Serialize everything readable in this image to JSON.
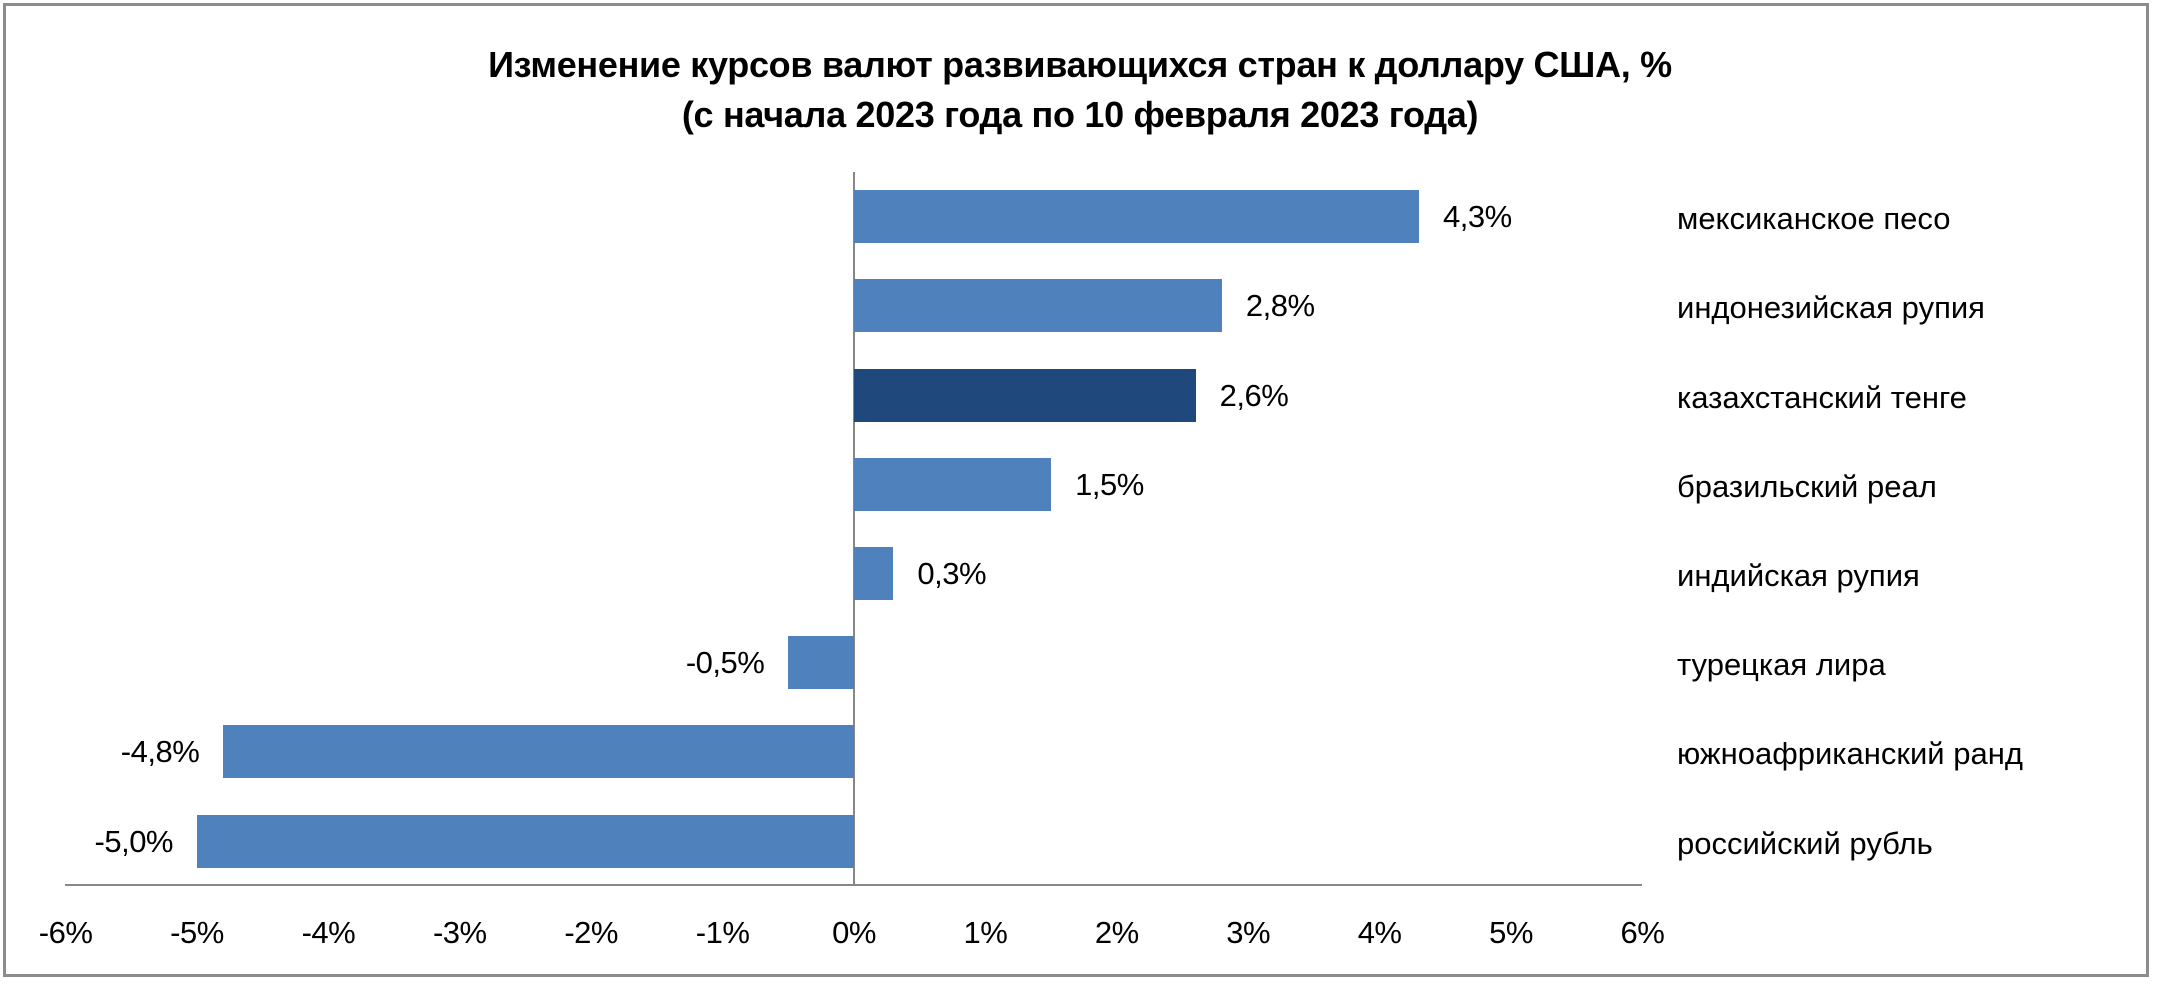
{
  "title": {
    "line1": "Изменение курсов валют развивающихся стран к доллару США, %",
    "line2": "(с начала 2023 года по 10 февраля 2023 года)"
  },
  "colors": {
    "bar": "#4f81bd",
    "highlight_bar": "#1f497d",
    "axis": "#878787",
    "frame": "#8c8c8c"
  },
  "categories": [
    {
      "label": "мексиканское песо",
      "value": 4.3,
      "value_label": "4,3%",
      "highlight": false
    },
    {
      "label": "индонезийская рупия",
      "value": 2.8,
      "value_label": "2,8%",
      "highlight": false
    },
    {
      "label": "казахстанский тенге",
      "value": 2.6,
      "value_label": "2,6%",
      "highlight": true
    },
    {
      "label": "бразильский реал",
      "value": 1.5,
      "value_label": "1,5%",
      "highlight": false
    },
    {
      "label": "индийская рупия",
      "value": 0.3,
      "value_label": "0,3%",
      "highlight": false
    },
    {
      "label": "турецкая лира",
      "value": -0.5,
      "value_label": "-0,5%",
      "highlight": false
    },
    {
      "label": "южноафриканский ранд",
      "value": -4.8,
      "value_label": "-4,8%",
      "highlight": false
    },
    {
      "label": "российский рубль",
      "value": -5.0,
      "value_label": "-5,0%",
      "highlight": false
    }
  ],
  "x_ticks": [
    "-6%",
    "-5%",
    "-4%",
    "-3%",
    "-2%",
    "-1%",
    "0%",
    "1%",
    "2%",
    "3%",
    "4%",
    "5%",
    "6%"
  ],
  "chart_data": {
    "type": "bar",
    "orientation": "horizontal",
    "title": "Изменение курсов валют развивающихся стран к доллару США, % (с начала 2023 года по 10 февраля 2023 года)",
    "categories": [
      "мексиканское песо",
      "индонезийская рупия",
      "казахстанский тенге",
      "бразильский реал",
      "индийская рупия",
      "турецкая лира",
      "южноафриканский ранд",
      "российский рубль"
    ],
    "values": [
      4.3,
      2.8,
      2.6,
      1.5,
      0.3,
      -0.5,
      -4.8,
      -5.0
    ],
    "data_labels": [
      "4,3%",
      "2,8%",
      "2,6%",
      "1,5%",
      "0,3%",
      "-0,5%",
      "-4,8%",
      "-5,0%"
    ],
    "highlighted_category": "казахстанский тенге",
    "xlabel": "",
    "ylabel": "",
    "xlim": [
      -6,
      6
    ],
    "x_tick_labels": [
      "-6%",
      "-5%",
      "-4%",
      "-3%",
      "-2%",
      "-1%",
      "0%",
      "1%",
      "2%",
      "3%",
      "4%",
      "5%",
      "6%"
    ],
    "grid": false,
    "legend": "none",
    "category_labels_position": "right"
  }
}
